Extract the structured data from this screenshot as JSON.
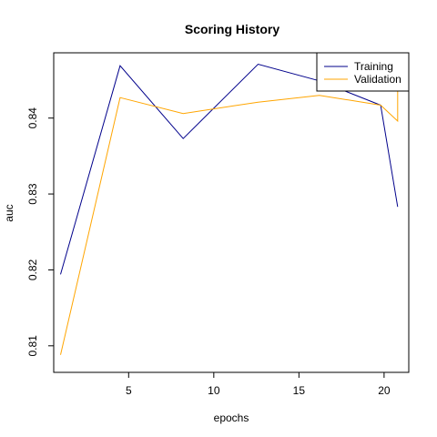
{
  "chart_data": {
    "type": "line",
    "title": "Scoring History",
    "xlabel": "epochs",
    "ylabel": "auc",
    "xlim": [
      0.6,
      21.45
    ],
    "ylim": [
      0.8065,
      0.8486
    ],
    "xticks": [
      5,
      10,
      15,
      20
    ],
    "yticks": [
      0.81,
      0.82,
      0.83,
      0.84
    ],
    "xtick_labels": [
      "5",
      "10",
      "15",
      "20"
    ],
    "ytick_labels": [
      "0.81",
      "0.82",
      "0.83",
      "0.84"
    ],
    "grid": false,
    "legend_position": "top-right",
    "series": [
      {
        "name": "Training",
        "color": "#00008B",
        "x": [
          1,
          4.5,
          8.2,
          12.6,
          16.2,
          19.8,
          20.8
        ],
        "y": [
          0.8194,
          0.8469,
          0.8373,
          0.8471,
          0.8449,
          0.8417,
          0.8283
        ]
      },
      {
        "name": "Validation",
        "color": "#FFA500",
        "x": [
          1,
          4.5,
          8.2,
          12.6,
          16.2,
          19.8,
          20.8,
          20.8
        ],
        "y": [
          0.8088,
          0.8427,
          0.8406,
          0.8421,
          0.843,
          0.8417,
          0.8396,
          0.8449
        ]
      }
    ]
  }
}
